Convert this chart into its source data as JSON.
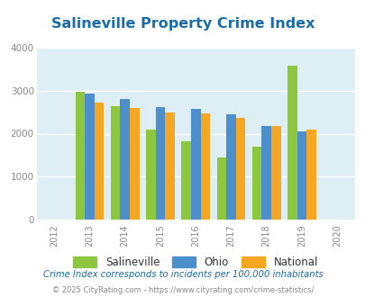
{
  "title": "Salineville Property Crime Index",
  "years": [
    2012,
    2013,
    2014,
    2015,
    2016,
    2017,
    2018,
    2019,
    2020
  ],
  "categories": [
    "Salineville",
    "Ohio",
    "National"
  ],
  "values": {
    "Salineville": [
      null,
      2970,
      2640,
      2090,
      1820,
      1450,
      1700,
      3570,
      null
    ],
    "Ohio": [
      null,
      2940,
      2800,
      2610,
      2580,
      2440,
      2170,
      2050,
      null
    ],
    "National": [
      null,
      2720,
      2590,
      2500,
      2460,
      2370,
      2170,
      2090,
      null
    ]
  },
  "colors": {
    "Salineville": "#8dc63f",
    "Ohio": "#4d8fcc",
    "National": "#f5a623"
  },
  "ylim": [
    0,
    4000
  ],
  "yticks": [
    0,
    1000,
    2000,
    3000,
    4000
  ],
  "xlim": [
    2011.5,
    2020.5
  ],
  "plot_bg_color": "#ddeef4",
  "fig_bg_color": "#ffffff",
  "title_color": "#1a6ca8",
  "title_fontsize": 11.5,
  "legend_fontsize": 8.5,
  "footer_text": "Crime Index corresponds to incidents per 100,000 inhabitants",
  "copyright_text": "© 2025 CityRating.com - https://www.cityrating.com/crime-statistics/",
  "bar_width": 0.27,
  "grid_color": "#ffffff",
  "tick_label_color": "#888888",
  "footer_color": "#1a6ca8",
  "copyright_color": "#888888"
}
